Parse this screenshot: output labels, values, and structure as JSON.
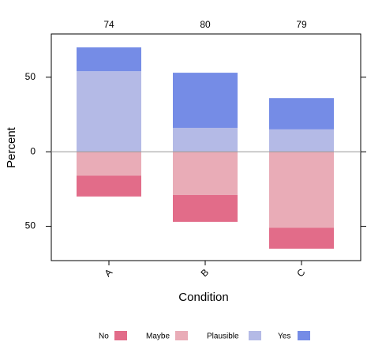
{
  "chart_data": {
    "type": "diverging_bar",
    "categories": [
      "A",
      "B",
      "C"
    ],
    "top_labels": [
      74,
      80,
      79
    ],
    "xlabel": "Condition",
    "ylabel": "Percent",
    "ylim": [
      -73,
      79
    ],
    "yticks": [
      {
        "value": -50,
        "label": "50"
      },
      0,
      50
    ],
    "series": [
      {
        "name": "No",
        "color": "#e26c89",
        "values": [
          -14,
          -18,
          -14
        ]
      },
      {
        "name": "Maybe",
        "color": "#e9acb7",
        "values": [
          -16,
          -29,
          -51
        ]
      },
      {
        "name": "Plausible",
        "color": "#b4bae6",
        "values": [
          54,
          16,
          15
        ]
      },
      {
        "name": "Yes",
        "color": "#758ce6",
        "values": [
          16,
          37,
          21
        ]
      }
    ],
    "legend": "bottom"
  }
}
